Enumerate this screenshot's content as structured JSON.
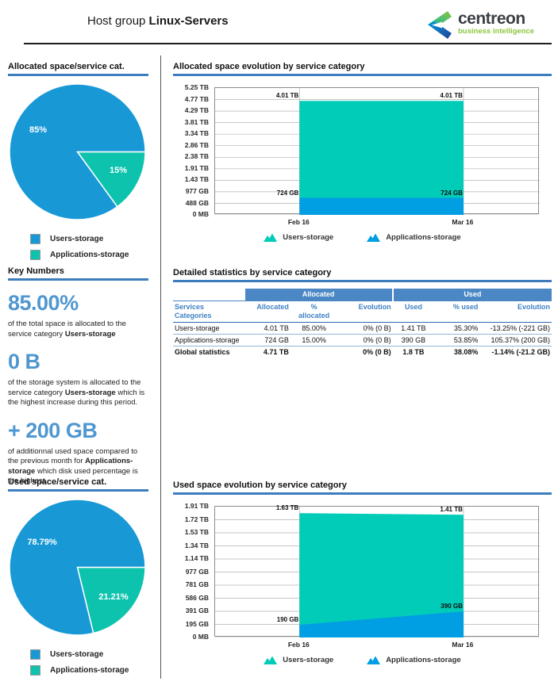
{
  "header": {
    "title_prefix": "Host group",
    "title_name": "Linux-Servers",
    "logo_text": "centreon",
    "logo_tagline": "business intelligence"
  },
  "colors": {
    "pie_blue": "#1899d6",
    "pie_teal": "#0ec3ad",
    "area_blue": "#009ee3",
    "area_teal": "#00ccb8",
    "heading_underline": "#3e7dbd",
    "table_band": "#4a87c4",
    "table_header_text": "#3f82c4",
    "key_number_blue": "#4f97d0"
  },
  "sections": {
    "allocated_pie_title": "Allocated space/service cat.",
    "key_numbers_title": "Key Numbers",
    "used_pie_title": "Used space/service cat.",
    "allocated_evolution_title": "Allocated space evolution by service category",
    "detailed_stats_title": "Detailed statistics by service category",
    "used_evolution_title": "Used space evolution by service category"
  },
  "key_numbers": [
    {
      "value": "85.00%",
      "before": "of the total space is allocated to the service category",
      "bold": "Users-storage",
      "after": ""
    },
    {
      "value": "0 B",
      "before": "of the storage system is allocated to the service category",
      "bold": "Users-storage",
      "after": "which is the highest increase during this period."
    },
    {
      "value": "+ 200 GB",
      "before": "of additionnal used space compared to the previous month for",
      "bold": "Applications-storage",
      "after": "which disk used percentage is the highest."
    }
  ],
  "table": {
    "group_headers": [
      "",
      "Allocated",
      "Used"
    ],
    "columns": [
      "Services\nCategories",
      "Allocated",
      "%\nallocated",
      "Evolution",
      "Used",
      "% used",
      "Evolution"
    ],
    "rows": [
      {
        "bold": false,
        "cells": [
          "Users-storage",
          "4.01 TB",
          "85.00%",
          "0% (0 B)",
          "1.41 TB",
          "35.30%",
          "-13.25% (-221 GB)"
        ]
      },
      {
        "bold": false,
        "cells": [
          "Applications-storage",
          "724 GB",
          "15.00%",
          "0% (0 B)",
          "390 GB",
          "53.85%",
          "105.37% (200 GB)"
        ]
      },
      {
        "bold": true,
        "cells": [
          "Global statistics",
          "4.71 TB",
          "",
          "0% (0 B)",
          "1.8 TB",
          "38.08%",
          "-1.14% (-21.2 GB)"
        ]
      }
    ]
  },
  "chart_data": [
    {
      "id": "allocated-pie",
      "type": "pie",
      "title": "Allocated space/service cat.",
      "labels": [
        "Users-storage",
        "Applications-storage"
      ],
      "values": [
        85,
        15
      ],
      "display_labels": [
        "85%",
        "15%"
      ],
      "colors": [
        "#1899d6",
        "#0ec3ad"
      ],
      "legend_position": "bottom"
    },
    {
      "id": "allocated-evolution",
      "type": "area",
      "stacked": true,
      "title": "Allocated space evolution by service category",
      "x": [
        "Feb 16",
        "Mar 16"
      ],
      "series": [
        {
          "name": "Applications-storage",
          "color": "#009ee3",
          "values_gb": [
            724,
            724
          ],
          "point_labels": [
            "724 GB",
            "724 GB"
          ]
        },
        {
          "name": "Users-storage",
          "color": "#00ccb8",
          "values_gb": [
            4106,
            4106
          ],
          "point_labels": [
            "4.01 TB",
            "4.01 TB"
          ]
        }
      ],
      "ylim_gb": [
        0,
        5376
      ],
      "yticks": [
        "5.25 TB",
        "4.77 TB",
        "4.29 TB",
        "3.81 TB",
        "3.34 TB",
        "2.86 TB",
        "2.38 TB",
        "1.91 TB",
        "1.43 TB",
        "977 GB",
        "488 GB",
        "0 MB"
      ],
      "legend": [
        "Users-storage",
        "Applications-storage"
      ],
      "legend_colors": [
        "#00ccb8",
        "#009ee3"
      ],
      "grid": true,
      "legend_position": "bottom"
    },
    {
      "id": "used-pie",
      "type": "pie",
      "title": "Used space/service cat.",
      "labels": [
        "Users-storage",
        "Applications-storage"
      ],
      "values": [
        78.79,
        21.21
      ],
      "display_labels": [
        "78.79%",
        "21.21%"
      ],
      "colors": [
        "#1899d6",
        "#0ec3ad"
      ],
      "legend_position": "bottom"
    },
    {
      "id": "used-evolution",
      "type": "area",
      "stacked": true,
      "title": "Used space evolution by service category",
      "x": [
        "Feb 16",
        "Mar 16"
      ],
      "series": [
        {
          "name": "Applications-storage",
          "color": "#009ee3",
          "values_gb": [
            190,
            390
          ],
          "point_labels": [
            "190 GB",
            "390 GB"
          ]
        },
        {
          "name": "Users-storage",
          "color": "#00ccb8",
          "values_gb": [
            1669,
            1444
          ],
          "point_labels": [
            "1.63 TB",
            "1.41 TB"
          ]
        }
      ],
      "ylim_gb": [
        0,
        1956
      ],
      "yticks": [
        "1.91 TB",
        "1.72 TB",
        "1.53 TB",
        "1.34 TB",
        "1.14 TB",
        "977 GB",
        "781 GB",
        "586 GB",
        "391 GB",
        "195 GB",
        "0 MB"
      ],
      "legend": [
        "Users-storage",
        "Applications-storage"
      ],
      "legend_colors": [
        "#00ccb8",
        "#009ee3"
      ],
      "grid": true,
      "legend_position": "bottom"
    }
  ],
  "pie_legend": [
    "Users-storage",
    "Applications-storage"
  ]
}
